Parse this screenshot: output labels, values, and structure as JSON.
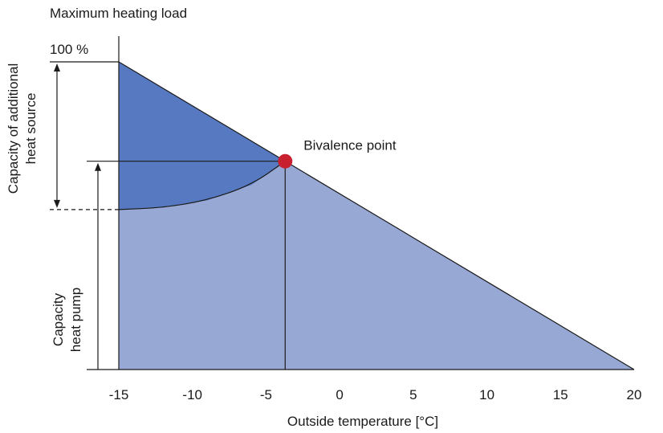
{
  "chart_data": {
    "type": "area",
    "title": "Maximum heating load",
    "xlabel": "Outside temperature [°C]",
    "ylabel_top": [
      "Capacity of additional",
      "heat source"
    ],
    "ylabel_bottom": [
      "Capacity",
      "heat pump"
    ],
    "x_ticks": [
      -15,
      -10,
      -5,
      0,
      5,
      10,
      15,
      20
    ],
    "xlim": [
      -15,
      20
    ],
    "ylim": [
      0,
      100
    ],
    "y_tick_label": "100 %",
    "heating_load_line": {
      "x": [
        -15,
        20
      ],
      "y": [
        100,
        0
      ]
    },
    "heat_pump_curve": {
      "x": [
        -15,
        -12,
        -9,
        -6,
        -3.7
      ],
      "y": [
        52,
        52.6,
        55,
        60,
        67.7
      ]
    },
    "bivalence_point": {
      "label": "Bivalence point",
      "x": -3.7,
      "y": 67.7
    },
    "series": [
      {
        "name": "",
        "color": "#5679c1"
      },
      {
        "name": "",
        "color": "#97a8d5"
      }
    ],
    "annotations": {
      "heat_pump_share": 52,
      "bivalence_share": 67.7
    }
  }
}
